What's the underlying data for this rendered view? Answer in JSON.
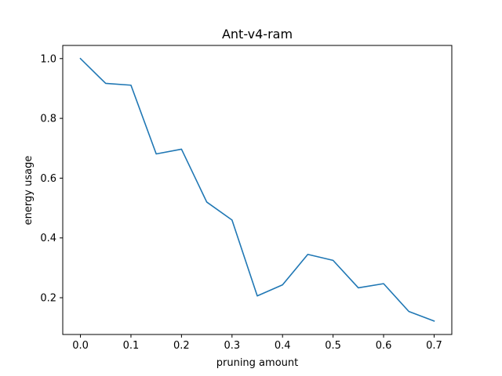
{
  "chart_data": {
    "type": "line",
    "title": "Ant-v4-ram",
    "xlabel": "pruning amount",
    "ylabel": "energy usage",
    "xlim": [
      -0.035,
      0.735
    ],
    "ylim": [
      0.077,
      1.044
    ],
    "xticks": [
      0.0,
      0.1,
      0.2,
      0.3,
      0.4,
      0.5,
      0.6,
      0.7
    ],
    "xtick_labels": [
      "0.0",
      "0.1",
      "0.2",
      "0.3",
      "0.4",
      "0.5",
      "0.6",
      "0.7"
    ],
    "yticks": [
      0.2,
      0.4,
      0.6,
      0.8,
      1.0
    ],
    "ytick_labels": [
      "0.2",
      "0.4",
      "0.6",
      "0.8",
      "1.0"
    ],
    "grid": false,
    "series": [
      {
        "color": "#1f77b4",
        "x": [
          0.0,
          0.05,
          0.1,
          0.15,
          0.2,
          0.25,
          0.3,
          0.35,
          0.4,
          0.45,
          0.5,
          0.55,
          0.6,
          0.65,
          0.7
        ],
        "y": [
          1.0,
          0.917,
          0.911,
          0.681,
          0.697,
          0.52,
          0.46,
          0.206,
          0.243,
          0.345,
          0.325,
          0.233,
          0.247,
          0.154,
          0.122
        ]
      }
    ]
  }
}
